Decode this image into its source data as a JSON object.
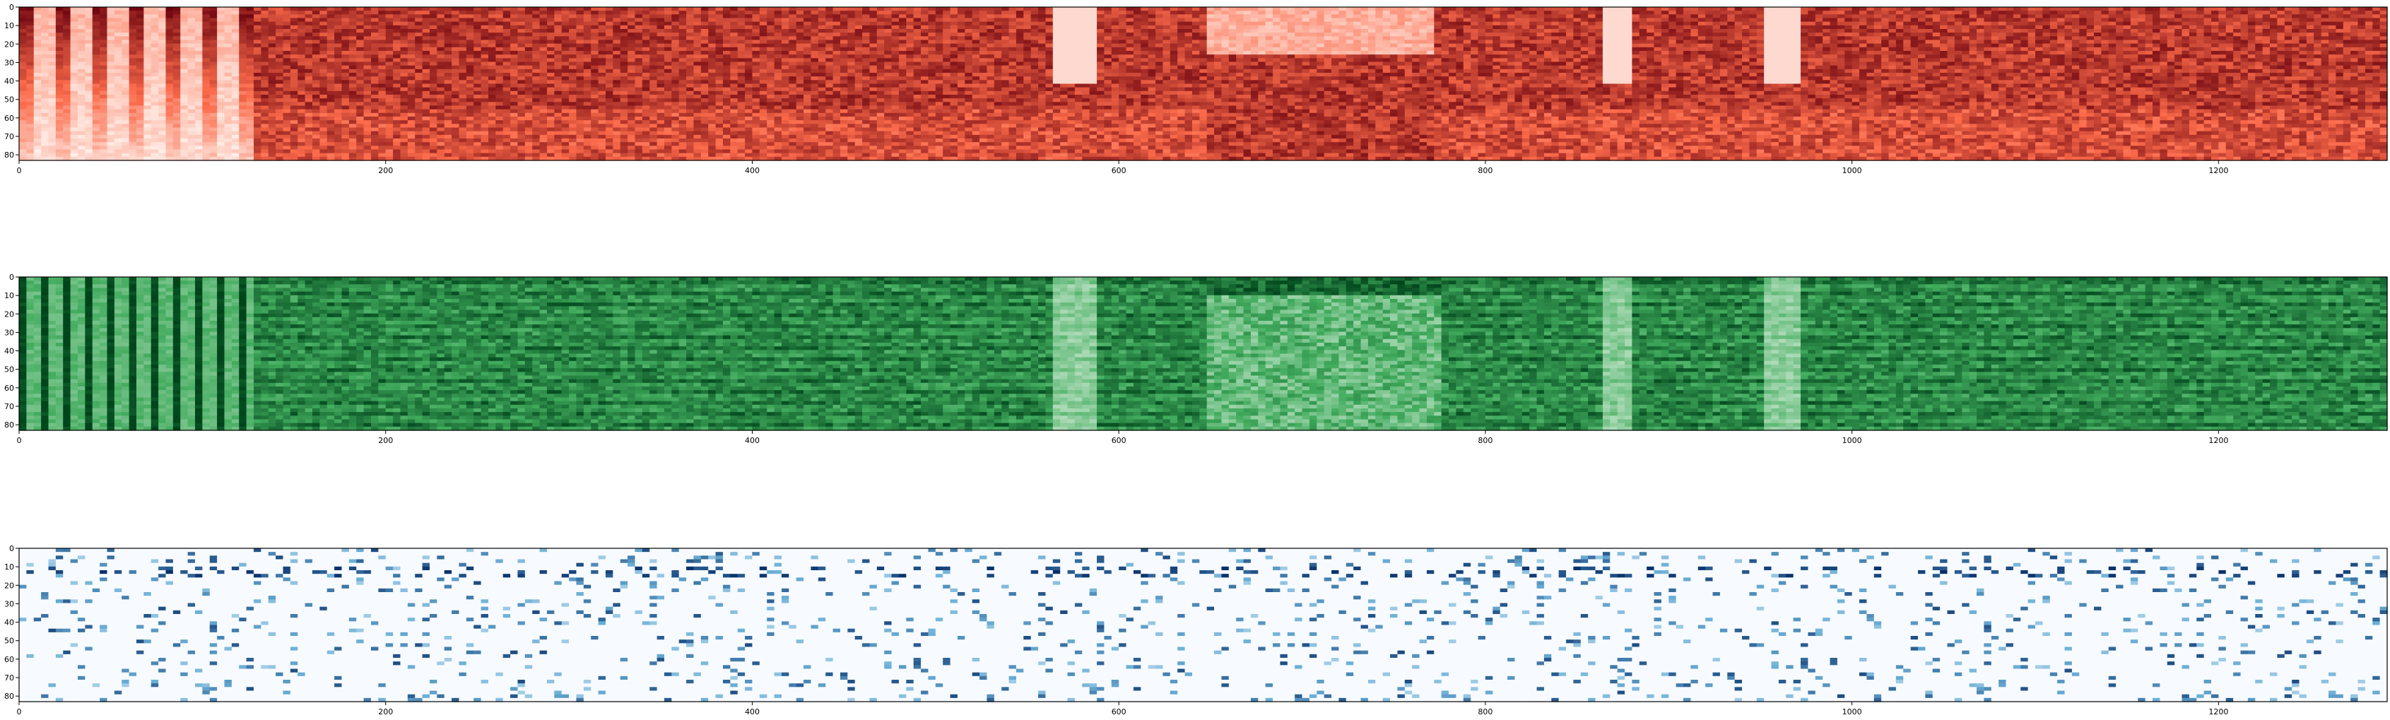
{
  "chart_data": [
    {
      "type": "heatmap",
      "name": "panel-1",
      "colormap": "Reds",
      "colors": {
        "low": "#fff5f0",
        "mid": "#fb6a4a",
        "high": "#67000d"
      },
      "xlim": [
        0,
        1292
      ],
      "ylim": [
        83,
        0
      ],
      "x_ticks": [
        0,
        200,
        400,
        600,
        800,
        1000,
        1200
      ],
      "y_ticks": [
        0,
        10,
        20,
        30,
        40,
        50,
        60,
        70,
        80
      ],
      "grid": false,
      "legend": "none"
    },
    {
      "type": "heatmap",
      "name": "panel-2",
      "colormap": "Greens",
      "colors": {
        "low": "#f7fcf5",
        "mid": "#41ab5d",
        "high": "#00441b"
      },
      "xlim": [
        0,
        1292
      ],
      "ylim": [
        83,
        0
      ],
      "x_ticks": [
        0,
        200,
        400,
        600,
        800,
        1000,
        1200
      ],
      "y_ticks": [
        0,
        10,
        20,
        30,
        40,
        50,
        60,
        70,
        80
      ],
      "grid": false,
      "legend": "none"
    },
    {
      "type": "heatmap",
      "name": "panel-3",
      "colormap": "Blues",
      "colors": {
        "low": "#f7fbff",
        "mid": "#6baed6",
        "high": "#08306b"
      },
      "xlim": [
        0,
        1292
      ],
      "ylim": [
        83,
        0
      ],
      "x_ticks": [
        0,
        200,
        400,
        600,
        800,
        1000,
        1200
      ],
      "y_ticks": [
        0,
        10,
        20,
        30,
        40,
        50,
        60,
        70,
        80
      ],
      "grid": false,
      "legend": "none"
    }
  ]
}
